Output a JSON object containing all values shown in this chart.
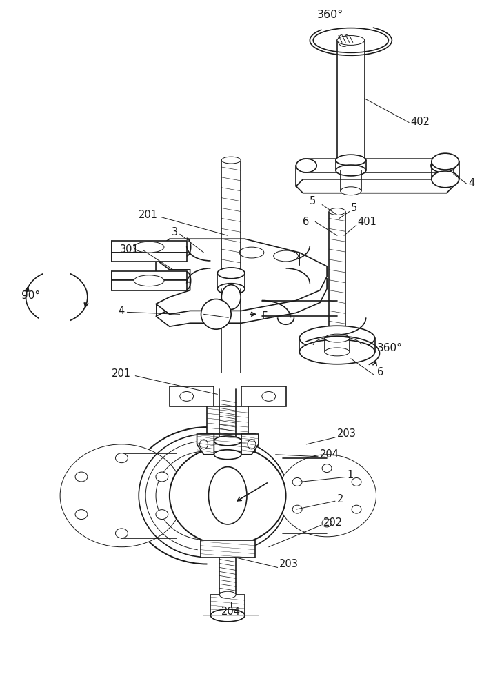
{
  "background_color": "#ffffff",
  "line_color": "#1a1a1a",
  "lw": 1.2,
  "tlw": 0.7,
  "labels": {
    "360_top": "360°",
    "402": "402",
    "4_top": "4",
    "5_upper": "5",
    "6_upper": "6",
    "3": "3",
    "201_upper": "201",
    "301": "301",
    "90deg": "90°",
    "4_mid": "4",
    "F": "F",
    "5_mid": "5",
    "401": "401",
    "360_mid": "360°",
    "6_lower": "6",
    "201_lower": "201",
    "203_upper": "203",
    "204_upper": "204",
    "1": "1",
    "2": "2",
    "202": "202",
    "203_lower": "203",
    "204_lower": "204"
  }
}
